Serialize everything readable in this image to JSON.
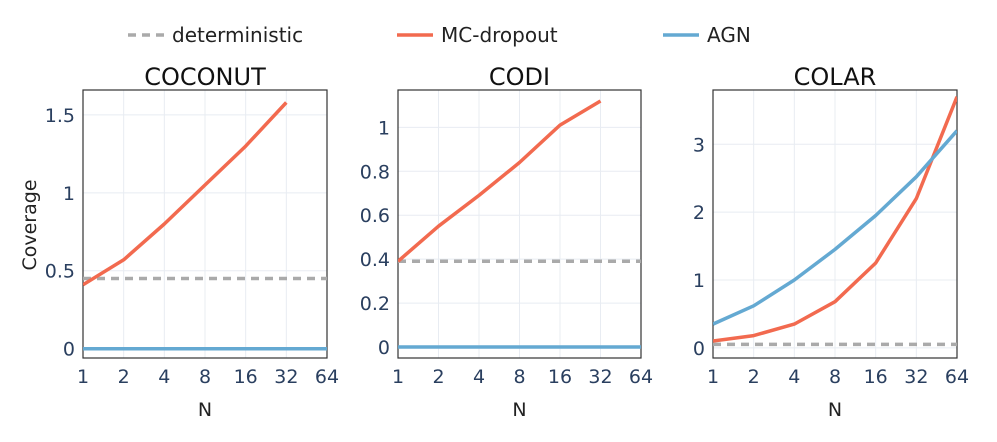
{
  "chart_data": {
    "type": "line",
    "legend": {
      "placement": "top",
      "items": [
        {
          "name": "deterministic",
          "color": "#aaaaaa",
          "dash": "dashed"
        },
        {
          "name": "MC-dropout",
          "color": "#f26a4f",
          "dash": "solid"
        },
        {
          "name": "AGN",
          "color": "#64a9d2",
          "dash": "solid"
        }
      ]
    },
    "x_ticks": [
      "1",
      "2",
      "4",
      "8",
      "16",
      "32",
      "64"
    ],
    "ylabel": "Coverage",
    "panels": [
      {
        "title": "COCONUT",
        "xlabel": "N",
        "x_scale": "log2",
        "xlim": [
          1,
          64
        ],
        "ylim": [
          -0.06,
          1.66
        ],
        "y_ticks": [
          0,
          0.5,
          1,
          1.5
        ],
        "y_tick_labels": [
          "0",
          "0.5",
          "1",
          "1.5"
        ],
        "series": [
          {
            "name": "deterministic",
            "x": [
              1,
              64
            ],
            "y": [
              0.45,
              0.45
            ]
          },
          {
            "name": "MC-dropout",
            "x": [
              1,
              2,
              4,
              8,
              16,
              32
            ],
            "y": [
              0.41,
              0.57,
              0.8,
              1.05,
              1.3,
              1.58
            ]
          },
          {
            "name": "AGN",
            "x": [
              1,
              64
            ],
            "y": [
              0.0,
              0.0
            ]
          }
        ]
      },
      {
        "title": "CODI",
        "xlabel": "N",
        "x_scale": "log2",
        "xlim": [
          1,
          64
        ],
        "ylim": [
          -0.05,
          1.17
        ],
        "y_ticks": [
          0,
          0.2,
          0.4,
          0.6,
          0.8,
          1
        ],
        "y_tick_labels": [
          "0",
          "0.2",
          "0.4",
          "0.6",
          "0.8",
          "1"
        ],
        "series": [
          {
            "name": "deterministic",
            "x": [
              1,
              64
            ],
            "y": [
              0.39,
              0.39
            ]
          },
          {
            "name": "MC-dropout",
            "x": [
              1,
              2,
              4,
              8,
              16,
              32
            ],
            "y": [
              0.39,
              0.55,
              0.69,
              0.84,
              1.01,
              1.12
            ]
          },
          {
            "name": "AGN",
            "x": [
              1,
              64
            ],
            "y": [
              0.0,
              0.0
            ]
          }
        ]
      },
      {
        "title": "COLAR",
        "xlabel": "N",
        "x_scale": "log2",
        "xlim": [
          1,
          64
        ],
        "ylim": [
          -0.15,
          3.8
        ],
        "y_ticks": [
          0,
          1,
          2,
          3
        ],
        "y_tick_labels": [
          "0",
          "1",
          "2",
          "3"
        ],
        "series": [
          {
            "name": "deterministic",
            "x": [
              1,
              64
            ],
            "y": [
              0.05,
              0.05
            ]
          },
          {
            "name": "MC-dropout",
            "x": [
              1,
              2,
              4,
              8,
              16,
              32,
              64
            ],
            "y": [
              0.1,
              0.18,
              0.35,
              0.68,
              1.25,
              2.2,
              3.7
            ]
          },
          {
            "name": "AGN",
            "x": [
              1,
              2,
              4,
              8,
              16,
              32,
              64
            ],
            "y": [
              0.35,
              0.62,
              1.0,
              1.45,
              1.95,
              2.52,
              3.2
            ]
          }
        ]
      }
    ]
  }
}
